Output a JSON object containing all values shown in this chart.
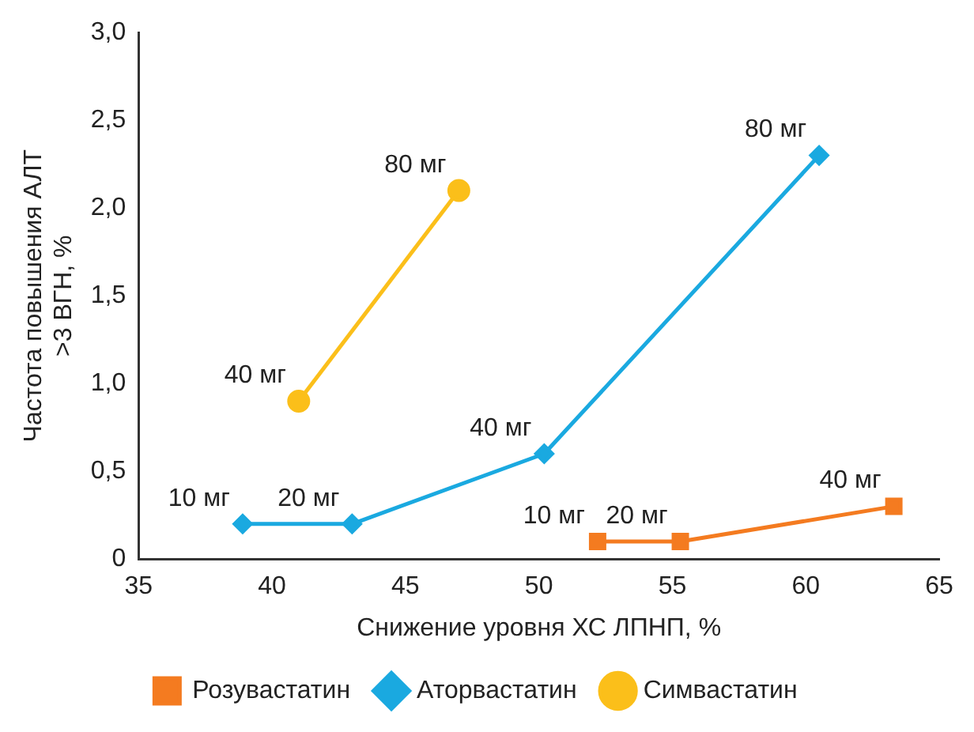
{
  "chart_data": {
    "type": "line",
    "xlabel": "Снижение уровня ХС ЛПНП, %",
    "ylabel": "Частота повышения АЛТ\n>3 ВГН, %",
    "xlim": [
      35,
      65
    ],
    "xticks": [
      35,
      40,
      45,
      50,
      55,
      60,
      65
    ],
    "ylim": [
      0,
      3
    ],
    "yticks": [
      0,
      {
        "value": 0.5,
        "label": "0,5"
      },
      {
        "value": 1,
        "label": "1,0"
      },
      {
        "value": 1.5,
        "label": "1,5"
      },
      {
        "value": 2,
        "label": "2,0"
      },
      {
        "value": 2.5,
        "label": "2,5"
      },
      {
        "value": 3,
        "label": "3,0"
      }
    ],
    "grid": false,
    "legend": "bottom",
    "line_style": "solid",
    "series": [
      {
        "name": "Розувастатин",
        "color": "#f47b20",
        "marker": "square",
        "x": [
          52.2,
          55.3,
          63.3
        ],
        "values": [
          0.1,
          0.1,
          0.3
        ]
      },
      {
        "name": "Аторвастатин",
        "color": "#1aa9e0",
        "marker": "diamond",
        "x": [
          38.9,
          43,
          50.2,
          60.5
        ],
        "values": [
          0.2,
          0.2,
          0.6,
          2.3
        ]
      },
      {
        "name": "Симвастатин",
        "color": "#fbbf1a",
        "marker": "circle",
        "x": [
          41,
          47
        ],
        "values": [
          0.9,
          2.1
        ]
      }
    ],
    "annotations": [
      {
        "text": "10 мг",
        "x": 52.2,
        "y": 0.1
      },
      {
        "text": "20 мг",
        "x": 55.3,
        "y": 0.1
      },
      {
        "text": "40 мг",
        "x": 63.3,
        "y": 0.3
      },
      {
        "text": "10 мг",
        "x": 38.9,
        "y": 0.2
      },
      {
        "text": "20 мг",
        "x": 43,
        "y": 0.2
      },
      {
        "text": "40 мг",
        "x": 50.2,
        "y": 0.6
      },
      {
        "text": "80 мг",
        "x": 60.5,
        "y": 2.3
      },
      {
        "text": "40 мг",
        "x": 41,
        "y": 0.9
      },
      {
        "text": "80 мг",
        "x": 47,
        "y": 2.1
      }
    ]
  }
}
